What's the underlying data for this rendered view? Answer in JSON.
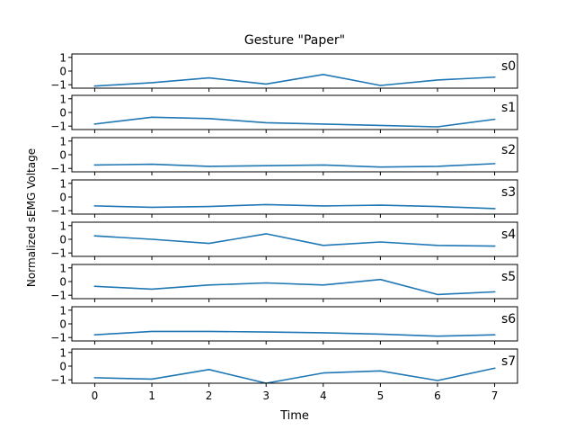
{
  "chart_data": {
    "type": "line",
    "title": "Gesture \"Paper\"",
    "xlabel": "Time",
    "ylabel": "Normalized sEMG Voltage",
    "x": [
      0,
      1,
      2,
      3,
      4,
      5,
      6,
      7
    ],
    "xlim": [
      -0.4,
      7.4
    ],
    "ylim": [
      -1.25,
      1.25
    ],
    "yticks": [
      -1,
      0,
      1
    ],
    "yticklabels": [
      "−1",
      "0",
      "1"
    ],
    "xticklabels": [
      "0",
      "1",
      "2",
      "3",
      "4",
      "5",
      "6",
      "7"
    ],
    "grid": false,
    "line_color": "#1f77b4",
    "series": [
      {
        "name": "s0",
        "values": [
          -1.1,
          -0.85,
          -0.5,
          -0.95,
          -0.25,
          -1.05,
          -0.65,
          -0.45
        ]
      },
      {
        "name": "s1",
        "values": [
          -0.85,
          -0.35,
          -0.45,
          -0.75,
          -0.85,
          -0.95,
          -1.05,
          -0.5
        ]
      },
      {
        "name": "s2",
        "values": [
          -0.75,
          -0.7,
          -0.85,
          -0.8,
          -0.75,
          -0.9,
          -0.85,
          -0.65
        ]
      },
      {
        "name": "s3",
        "values": [
          -0.65,
          -0.75,
          -0.7,
          -0.55,
          -0.65,
          -0.6,
          -0.7,
          -0.85
        ]
      },
      {
        "name": "s4",
        "values": [
          0.25,
          0.0,
          -0.3,
          0.4,
          -0.45,
          -0.2,
          -0.45,
          -0.5
        ]
      },
      {
        "name": "s5",
        "values": [
          -0.35,
          -0.55,
          -0.25,
          -0.1,
          -0.25,
          0.15,
          -0.95,
          -0.75
        ]
      },
      {
        "name": "s6",
        "values": [
          -0.8,
          -0.55,
          -0.55,
          -0.6,
          -0.65,
          -0.75,
          -0.9,
          -0.8
        ]
      },
      {
        "name": "s7",
        "values": [
          -0.85,
          -0.95,
          -0.25,
          -1.25,
          -0.5,
          -0.35,
          -1.05,
          -0.15
        ]
      }
    ]
  }
}
